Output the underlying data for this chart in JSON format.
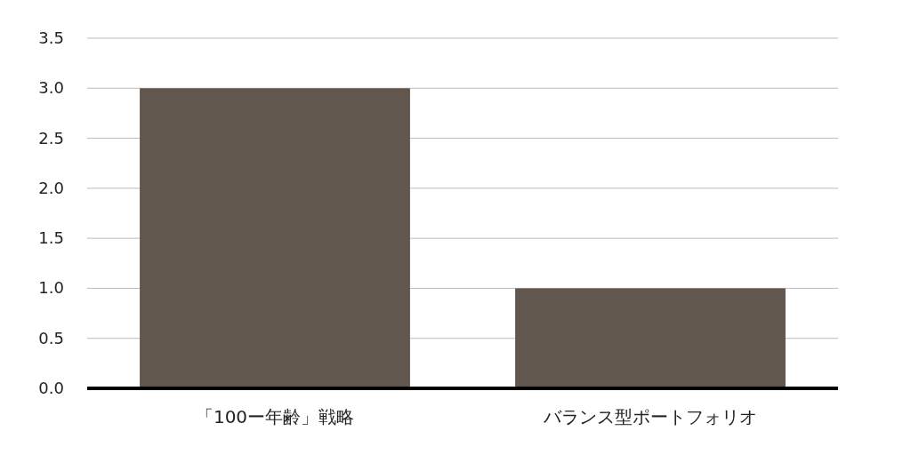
{
  "chart_data": {
    "type": "bar",
    "categories": [
      "「100ー年齢」戦略",
      "バランス型ポートフォリオ"
    ],
    "values": [
      3.0,
      1.0
    ],
    "color": "#62574f",
    "ylim": [
      0,
      3.5
    ],
    "yticks": [
      {
        "value": 0,
        "label": "0.0"
      },
      {
        "value": 0.5,
        "label": "0.5"
      },
      {
        "value": 1,
        "label": "1.0"
      },
      {
        "value": 1.5,
        "label": "1.5"
      },
      {
        "value": 2,
        "label": "2.0"
      },
      {
        "value": 2.5,
        "label": "2.5"
      },
      {
        "value": 3,
        "label": "3.0"
      },
      {
        "value": 3.5,
        "label": "3.5"
      }
    ],
    "grid": "y"
  }
}
